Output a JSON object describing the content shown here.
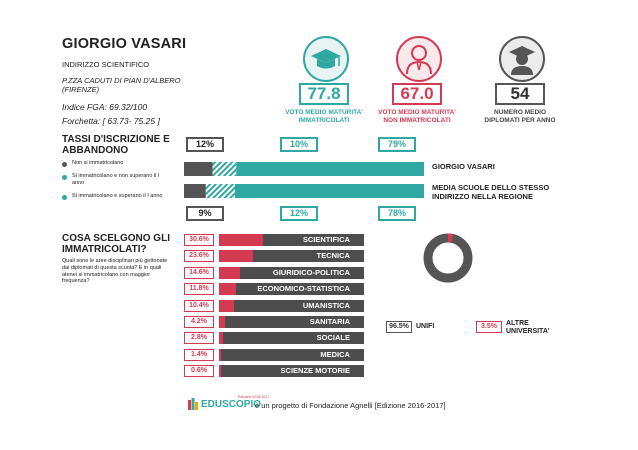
{
  "school": {
    "name": "GIORGIO VASARI",
    "track": "INDIRIZZO SCIENTIFICO",
    "address_line1": "P.ZZA CADUTI DI PIAN D'ALBERO",
    "address_line2": "(FIRENZE)",
    "fga_index": "Indice FGA: 69.32/100",
    "range": "Forchetta: [ 63.73- 75.25 ]"
  },
  "kpis": [
    {
      "value": "77.8",
      "caption": "VOTO MEDIO MATURITA' IMMATRICOLATI",
      "color": "#2fa8a2",
      "icon": "graduation-cap-icon"
    },
    {
      "value": "67.0",
      "caption": "VOTO MEDIO MATURITA' NON IMMATRICOLATI",
      "color": "#d43a52",
      "icon": "person-icon"
    },
    {
      "value": "54",
      "caption": "NUMERO MEDIO DIPLOMATI PER ANNO",
      "color": "#555555",
      "icon": "graduate-person-icon"
    }
  ],
  "enrollment": {
    "title_line1": "TASSI D'ISCRIZIONE E",
    "title_line2": "ABBANDONO",
    "legend": [
      {
        "label": "Non si immatricolano",
        "color": "#555555"
      },
      {
        "label": "Si immatricolano e non superano il I anno",
        "color": "#2fa8a2"
      },
      {
        "label": "Si immatricolano e superano il I anno",
        "color": "#2fa8a2"
      }
    ],
    "school_row": {
      "label": "GIORGIO VASARI",
      "values": [
        "12%",
        "10%",
        "79%"
      ],
      "fractions": [
        0.12,
        0.1,
        0.79
      ]
    },
    "region_row": {
      "label": "MEDIA SCUOLE DELLO STESSO INDIRIZZO NELLA REGIONE",
      "values": [
        "9%",
        "12%",
        "78%"
      ],
      "fractions": [
        0.09,
        0.12,
        0.78
      ]
    }
  },
  "choices": {
    "title_line1": "COSA SCELGONO GLI",
    "title_line2": "IMMATRICOLATI?",
    "subtitle": "Quali sono le aree disciplinari più gettonate dai diplomati di questa scuola? E in quali atenei si immatricolano con maggior frequenza?",
    "areas": [
      {
        "pct": "30.6%",
        "name": "SCIENTIFICA",
        "value": 30.6
      },
      {
        "pct": "23.6%",
        "name": "TECNICA",
        "value": 23.6
      },
      {
        "pct": "14.6%",
        "name": "GIURIDICO-POLITICA",
        "value": 14.6
      },
      {
        "pct": "11.8%",
        "name": "ECONOMICO-STATISTICA",
        "value": 11.8
      },
      {
        "pct": "10.4%",
        "name": "UMANISTICA",
        "value": 10.4
      },
      {
        "pct": "4.2%",
        "name": "SANITARIA",
        "value": 4.2
      },
      {
        "pct": "2.8%",
        "name": "SOCIALE",
        "value": 2.8
      },
      {
        "pct": "1.4%",
        "name": "MEDICA",
        "value": 1.4
      },
      {
        "pct": "0.6%",
        "name": "SCIENZE MOTORIE",
        "value": 0.6
      }
    ],
    "universities": [
      {
        "pct": "96.5%",
        "name": "UNIFI",
        "value": 96.5,
        "color": "#555555"
      },
      {
        "pct": "3.5%",
        "name": "ALTRE UNIVERSITA'",
        "value": 3.5,
        "color": "#d43a52"
      }
    ]
  },
  "footer": {
    "logo_text": "EDUSCOPIO",
    "logo_tag": "Edizione 2016-2017",
    "text": "è un progetto di Fondazione Agnelli [Edizione 2016-2017]"
  }
}
